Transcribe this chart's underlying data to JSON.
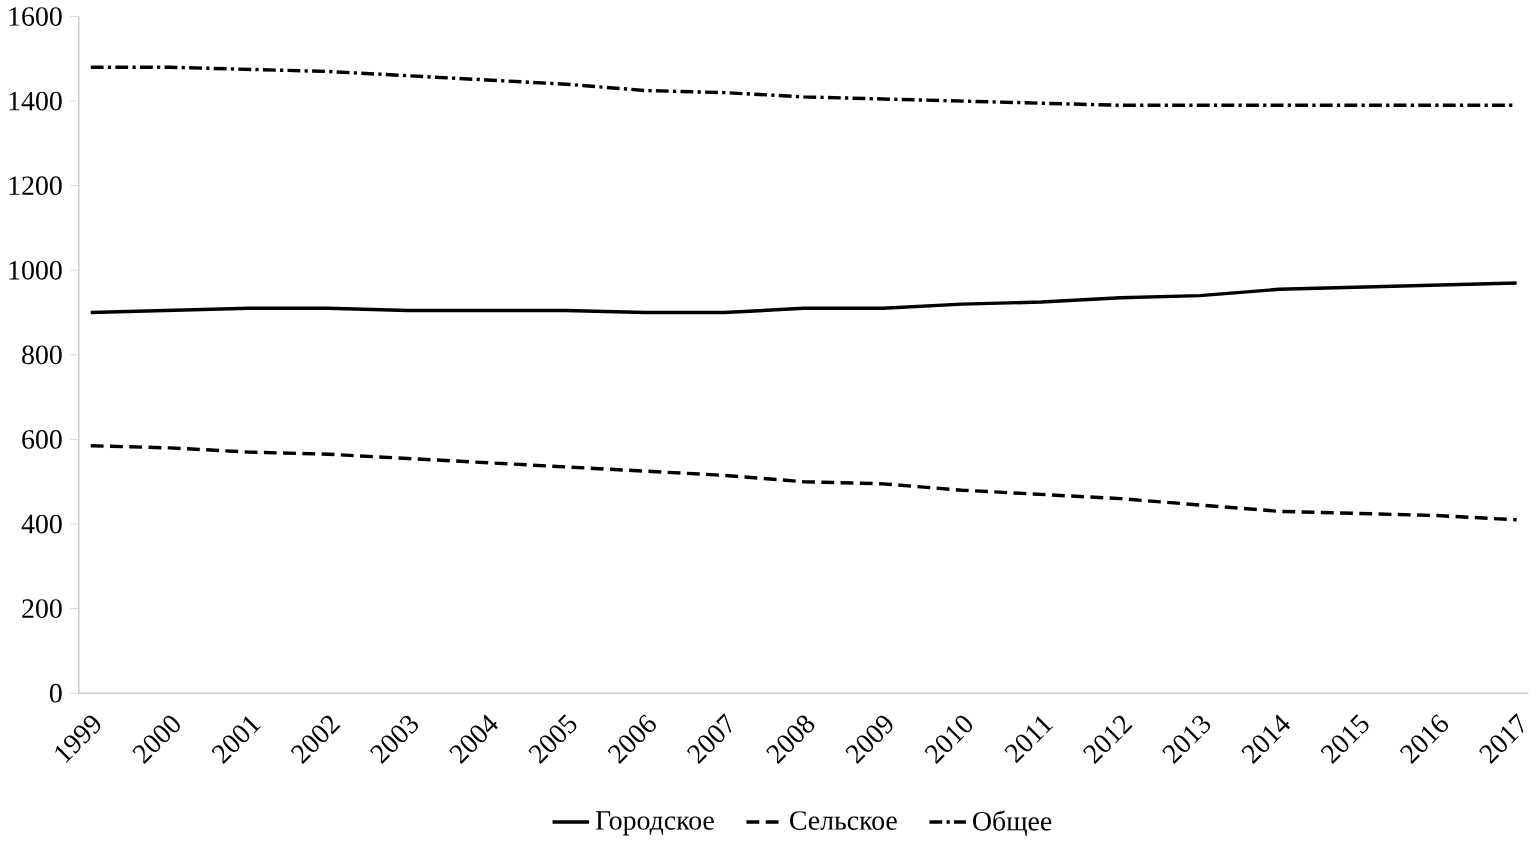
{
  "chart_data": {
    "type": "line",
    "categories": [
      "1999",
      "2000",
      "2001",
      "2002",
      "2003",
      "2004",
      "2005",
      "2006",
      "2007",
      "2008",
      "2009",
      "2010",
      "2011",
      "2012",
      "2013",
      "2014",
      "2015",
      "2016",
      "2017"
    ],
    "series": [
      {
        "name": "Городское",
        "color": "#000000",
        "line_style": "solid",
        "values": [
          900,
          905,
          910,
          910,
          905,
          905,
          905,
          900,
          900,
          910,
          910,
          920,
          925,
          935,
          940,
          955,
          960,
          965,
          970
        ]
      },
      {
        "name": "Сельское",
        "color": "#000000",
        "line_style": "dashed",
        "values": [
          585,
          580,
          570,
          565,
          555,
          545,
          535,
          525,
          515,
          500,
          495,
          480,
          470,
          460,
          445,
          430,
          425,
          420,
          410
        ]
      },
      {
        "name": "Общее",
        "color": "#000000",
        "line_style": "dashdot",
        "values": [
          1480,
          1480,
          1475,
          1470,
          1460,
          1450,
          1440,
          1425,
          1420,
          1410,
          1405,
          1400,
          1395,
          1390,
          1390,
          1390,
          1390,
          1390,
          1390
        ]
      }
    ],
    "ylim": [
      0,
      1600
    ],
    "yticks": [
      0,
      200,
      400,
      600,
      800,
      1000,
      1200,
      1400,
      1600
    ],
    "grid": false,
    "legend": "bottom",
    "marker": "none"
  }
}
